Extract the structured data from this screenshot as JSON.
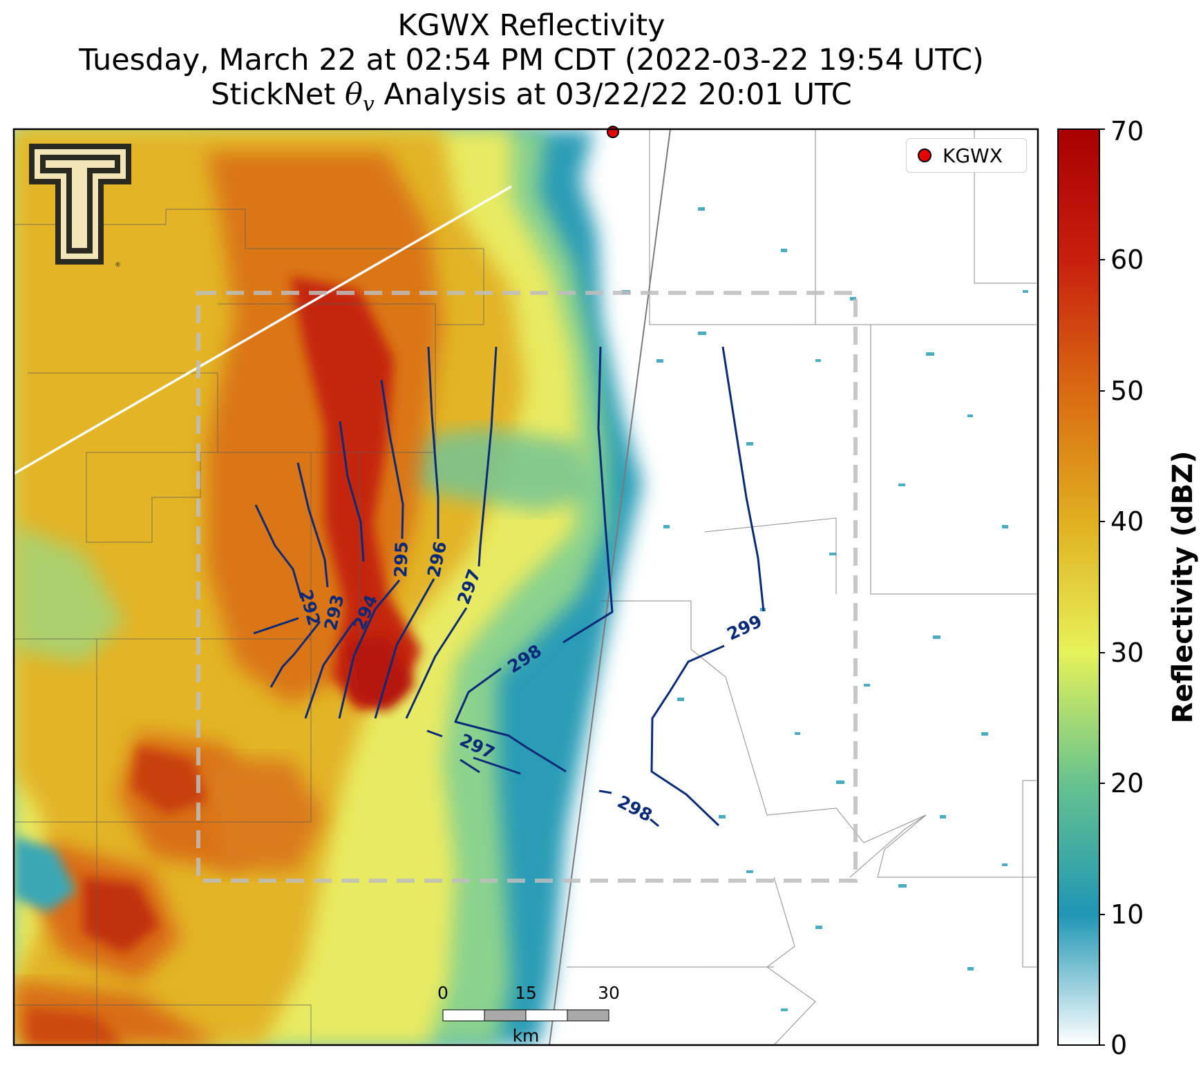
{
  "title": {
    "line1": "KGWX Reflectivity",
    "line2": "Tuesday, March 22 at 02:54 PM CDT (2022-03-22 19:54 UTC)",
    "line3_prefix": "StickNet ",
    "line3_symbol": "θ",
    "line3_subscript": "v",
    "line3_suffix": " Analysis at 03/22/22 20:01 UTC"
  },
  "legend": {
    "label": "KGWX",
    "marker_color": "#e60000"
  },
  "logo": {
    "text": "T",
    "mark": "®",
    "colors": [
      "#2b2a20",
      "#f2e6b8"
    ]
  },
  "colorbar": {
    "label": "Reflectivity (dBZ)",
    "min": 0,
    "max": 70,
    "ticks": [
      "0",
      "10",
      "20",
      "30",
      "40",
      "50",
      "60",
      "70"
    ],
    "colors": [
      "#ffffff",
      "#1f96b4",
      "#66c28e",
      "#e6f25a",
      "#e0b020",
      "#d96a12",
      "#c8200e",
      "#a80000"
    ]
  },
  "contours": {
    "color": "#0a2a78",
    "labels": [
      "292",
      "293",
      "294",
      "295",
      "296",
      "297",
      "298",
      "297",
      "298",
      "299"
    ]
  },
  "scalebar": {
    "ticks": [
      "0",
      "15",
      "30"
    ],
    "unit": "km"
  }
}
